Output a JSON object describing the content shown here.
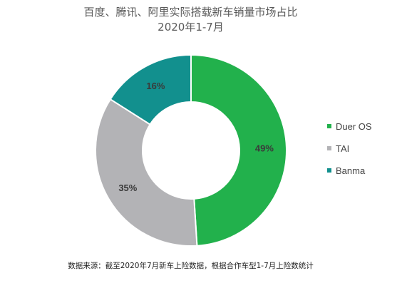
{
  "title_line1": "百度、腾讯、阿里实际搭载新车销量市场占比",
  "title_line2": "2020年1-7月",
  "source_note": "数据来源：截至2020年7月新车上险数据，根据合作车型1-7月上险数统计",
  "chart_data": {
    "type": "pie",
    "title": "百度、腾讯、阿里实际搭载新车销量市场占比 2020年1-7月",
    "donut": true,
    "legend_position": "right",
    "categories": [
      "Duer OS",
      "TAI",
      "Banma"
    ],
    "values": [
      49,
      35,
      16
    ],
    "labels": [
      "49%",
      "35%",
      "16%"
    ],
    "colors": [
      "#22b14c",
      "#b3b3b6",
      "#12908e"
    ]
  }
}
